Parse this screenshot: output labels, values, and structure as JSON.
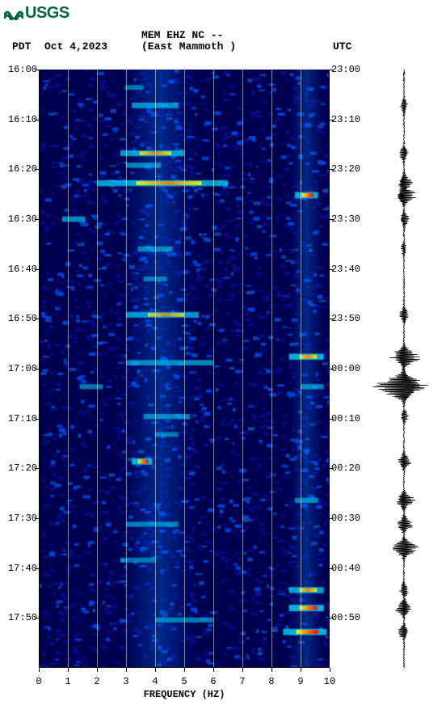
{
  "logo_text": "USGS",
  "header": {
    "station_line1": "MEM EHZ NC --",
    "station_line2": "(East Mammoth )",
    "tz_left": "PDT",
    "date": "Oct 4,2023",
    "tz_right": "UTC"
  },
  "spectrogram": {
    "type": "spectrogram",
    "background_color": "#0a0a80",
    "low_color": "#000050",
    "mid_color": "#0040d0",
    "high_color": "#00e0ff",
    "hot_colors": [
      "#ffff00",
      "#ff8000",
      "#ff0000"
    ],
    "freq_hz": {
      "min": 0,
      "max": 10,
      "ticks": [
        0,
        1,
        2,
        3,
        4,
        5,
        6,
        7,
        8,
        9,
        10
      ]
    },
    "xlabel": "FREQUENCY (HZ)",
    "time_left": {
      "label": "PDT",
      "ticks": [
        "16:00",
        "16:10",
        "16:20",
        "16:30",
        "16:40",
        "16:50",
        "17:00",
        "17:10",
        "17:20",
        "17:30",
        "17:40",
        "17:50"
      ]
    },
    "time_right": {
      "label": "UTC",
      "ticks": [
        "23:00",
        "23:10",
        "23:20",
        "23:30",
        "23:40",
        "23:50",
        "00:00",
        "00:10",
        "00:20",
        "00:30",
        "00:40",
        "00:50"
      ]
    },
    "gridline_color": "#e0e0e0",
    "hot_bands": [
      {
        "t": 0.03,
        "f0": 3.0,
        "f1": 3.6,
        "intensity": 0.5
      },
      {
        "t": 0.06,
        "f0": 3.2,
        "f1": 4.8,
        "intensity": 0.7
      },
      {
        "t": 0.14,
        "f0": 2.8,
        "f1": 5.0,
        "intensity": 0.8
      },
      {
        "t": 0.16,
        "f0": 3.0,
        "f1": 4.2,
        "intensity": 0.6
      },
      {
        "t": 0.19,
        "f0": 2.0,
        "f1": 6.5,
        "intensity": 0.85
      },
      {
        "t": 0.21,
        "f0": 8.8,
        "f1": 9.6,
        "intensity": 0.95
      },
      {
        "t": 0.25,
        "f0": 0.8,
        "f1": 1.6,
        "intensity": 0.7
      },
      {
        "t": 0.3,
        "f0": 3.4,
        "f1": 4.6,
        "intensity": 0.6
      },
      {
        "t": 0.35,
        "f0": 3.6,
        "f1": 4.4,
        "intensity": 0.5
      },
      {
        "t": 0.41,
        "f0": 3.0,
        "f1": 5.5,
        "intensity": 0.75
      },
      {
        "t": 0.48,
        "f0": 8.6,
        "f1": 9.8,
        "intensity": 0.9
      },
      {
        "t": 0.49,
        "f0": 3.0,
        "f1": 6.0,
        "intensity": 0.65
      },
      {
        "t": 0.53,
        "f0": 1.4,
        "f1": 2.2,
        "intensity": 0.55
      },
      {
        "t": 0.53,
        "f0": 9.0,
        "f1": 9.8,
        "intensity": 0.6
      },
      {
        "t": 0.58,
        "f0": 3.6,
        "f1": 5.2,
        "intensity": 0.6
      },
      {
        "t": 0.61,
        "f0": 4.0,
        "f1": 4.8,
        "intensity": 0.5
      },
      {
        "t": 0.655,
        "f0": 3.2,
        "f1": 3.9,
        "intensity": 0.95
      },
      {
        "t": 0.72,
        "f0": 8.8,
        "f1": 9.6,
        "intensity": 0.6
      },
      {
        "t": 0.76,
        "f0": 3.0,
        "f1": 4.8,
        "intensity": 0.55
      },
      {
        "t": 0.82,
        "f0": 2.8,
        "f1": 4.0,
        "intensity": 0.5
      },
      {
        "t": 0.87,
        "f0": 8.6,
        "f1": 9.8,
        "intensity": 0.85
      },
      {
        "t": 0.9,
        "f0": 8.6,
        "f1": 9.8,
        "intensity": 0.98
      },
      {
        "t": 0.92,
        "f0": 4.0,
        "f1": 6.0,
        "intensity": 0.55
      },
      {
        "t": 0.94,
        "f0": 8.4,
        "f1": 9.9,
        "intensity": 0.95
      }
    ],
    "noise_density": 2200
  },
  "seismogram": {
    "color": "#000000",
    "baseline_x": 0.5,
    "events": [
      {
        "t": 0.06,
        "amp": 0.12
      },
      {
        "t": 0.14,
        "amp": 0.15
      },
      {
        "t": 0.19,
        "amp": 0.25
      },
      {
        "t": 0.21,
        "amp": 0.35
      },
      {
        "t": 0.25,
        "amp": 0.15
      },
      {
        "t": 0.3,
        "amp": 0.1
      },
      {
        "t": 0.41,
        "amp": 0.15
      },
      {
        "t": 0.48,
        "amp": 0.45
      },
      {
        "t": 0.53,
        "amp": 0.85
      },
      {
        "t": 0.58,
        "amp": 0.12
      },
      {
        "t": 0.655,
        "amp": 0.2
      },
      {
        "t": 0.72,
        "amp": 0.3
      },
      {
        "t": 0.76,
        "amp": 0.25
      },
      {
        "t": 0.8,
        "amp": 0.4
      },
      {
        "t": 0.87,
        "amp": 0.15
      },
      {
        "t": 0.9,
        "amp": 0.25
      },
      {
        "t": 0.94,
        "amp": 0.18
      }
    ]
  },
  "fonts": {
    "tick_fontsize": 12,
    "header_fontsize": 13
  }
}
